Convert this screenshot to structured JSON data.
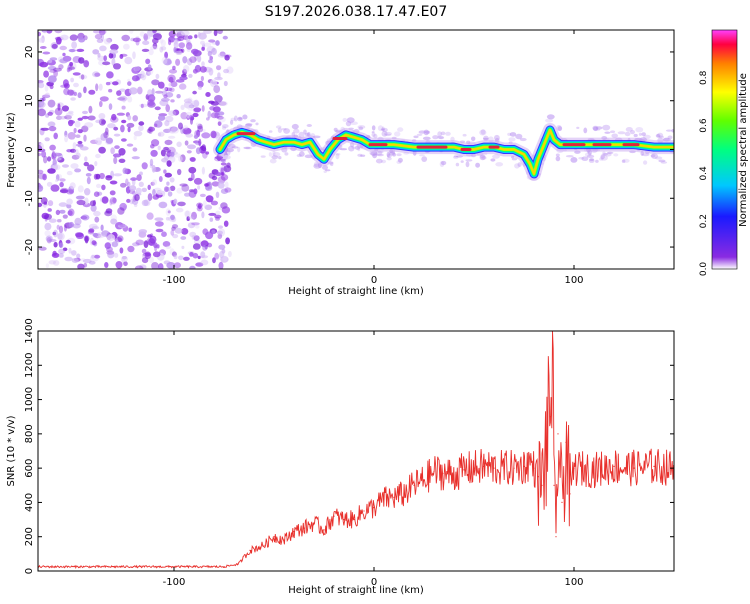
{
  "title": "S197.2026.038.17.47.E07",
  "colors": {
    "snr_line": "#e8302c",
    "ridge_core": "#e0243c",
    "noise": "#8a2be2"
  },
  "chart_data": [
    {
      "type": "heatmap",
      "name": "spectrogram",
      "xlabel": "Height of straight line (km)",
      "ylabel": "Frequency (Hz)",
      "xlim": [
        -168,
        150
      ],
      "ylim": [
        -24.5,
        24.5
      ],
      "xticks": [
        -100,
        0,
        100
      ],
      "xtick_labels": [
        "-100",
        "0",
        "100"
      ],
      "yticks": [
        -20,
        -10,
        0,
        10,
        20
      ],
      "ytick_labels": [
        "-20",
        "-10",
        "0",
        "10",
        "20"
      ],
      "noise_region_x": [
        -168,
        -75
      ],
      "ridge": {
        "x": [
          -77,
          -74,
          -70,
          -66,
          -62,
          -58,
          -54,
          -50,
          -45,
          -40,
          -36,
          -32,
          -28,
          -25,
          -22,
          -18,
          -14,
          -10,
          -6,
          -2,
          0,
          10,
          20,
          30,
          40,
          45,
          50,
          55,
          60,
          65,
          70,
          75,
          78,
          80,
          82,
          84,
          86,
          88,
          90,
          93,
          96,
          100,
          110,
          120,
          130,
          140,
          150
        ],
        "y": [
          0,
          2,
          3,
          3.5,
          3,
          2,
          1.5,
          1,
          1.5,
          1.5,
          1,
          1.5,
          -1,
          -2,
          0,
          2,
          3,
          2.5,
          2,
          1,
          1,
          1,
          0.5,
          0.5,
          0.5,
          0,
          0,
          0.5,
          0.5,
          0,
          0,
          -1,
          -3,
          -5,
          -2,
          0,
          2,
          4,
          2,
          1,
          1,
          1,
          1,
          1,
          1,
          0.5,
          0.5
        ]
      },
      "colorbar": {
        "label": "Normalized spectral amplitude",
        "range": [
          0,
          1
        ],
        "ticks": [
          0.0,
          0.2,
          0.4,
          0.6,
          0.8
        ],
        "tick_labels": [
          "0.0",
          "0.2",
          "0.4",
          "0.6",
          "0.8"
        ]
      }
    },
    {
      "type": "line",
      "name": "snr",
      "xlabel": "Height of straight line (km)",
      "ylabel": "SNR (10 * v/v)",
      "xlim": [
        -168,
        150
      ],
      "ylim": [
        0,
        1400
      ],
      "xticks": [
        -100,
        0,
        100
      ],
      "xtick_labels": [
        "-100",
        "0",
        "100"
      ],
      "yticks": [
        0,
        200,
        400,
        600,
        800,
        1000,
        1200,
        1400
      ],
      "ytick_labels": [
        "0",
        "200",
        "400",
        "600",
        "800",
        "1000",
        "1200",
        "1400"
      ],
      "series": [
        {
          "name": "SNR",
          "x": [
            -168,
            -150,
            -130,
            -110,
            -90,
            -75,
            -68,
            -62,
            -55,
            -50,
            -45,
            -40,
            -35,
            -30,
            -25,
            -20,
            -15,
            -10,
            -5,
            0,
            5,
            10,
            15,
            20,
            25,
            30,
            35,
            40,
            45,
            50,
            55,
            60,
            65,
            70,
            75,
            78,
            80,
            82,
            84,
            86,
            88,
            89,
            90,
            91,
            92,
            94,
            96,
            98,
            100,
            110,
            120,
            130,
            140,
            150
          ],
          "y": [
            25,
            25,
            25,
            25,
            25,
            25,
            40,
            120,
            150,
            200,
            180,
            230,
            250,
            280,
            240,
            320,
            300,
            300,
            350,
            370,
            420,
            430,
            450,
            500,
            530,
            580,
            570,
            560,
            590,
            600,
            610,
            600,
            600,
            600,
            610,
            640,
            600,
            550,
            500,
            700,
            900,
            1400,
            500,
            200,
            800,
            400,
            750,
            450,
            600,
            590,
            610,
            600,
            610,
            600
          ]
        }
      ]
    }
  ]
}
